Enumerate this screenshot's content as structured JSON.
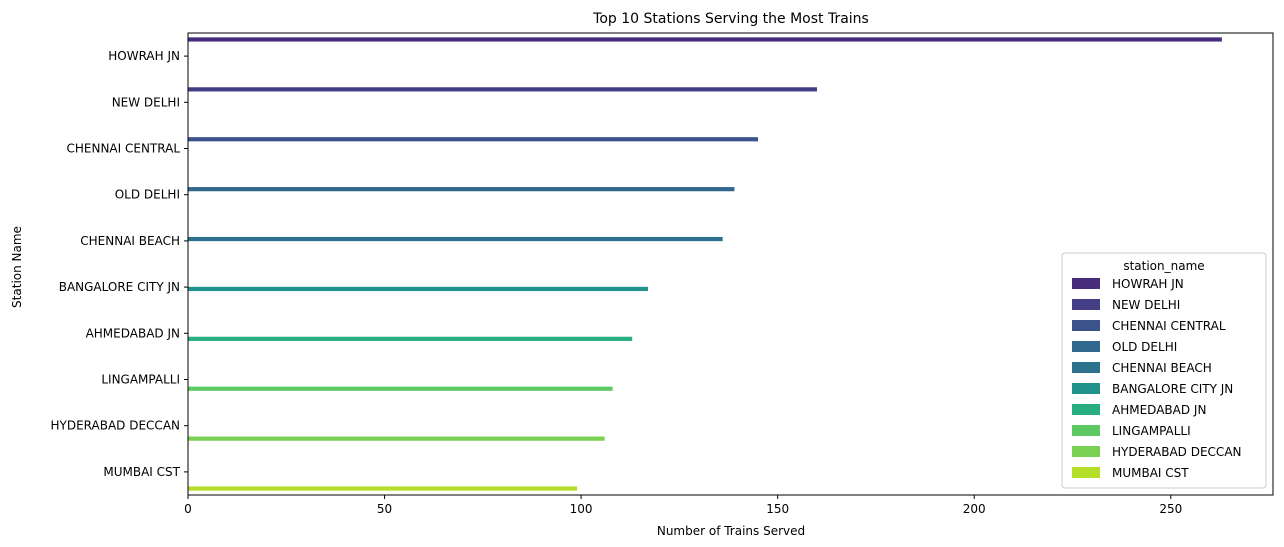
{
  "chart_data": {
    "type": "bar",
    "orientation": "horizontal",
    "title": "Top 10 Stations Serving the Most Trains",
    "xlabel": "Number of Trains Served",
    "ylabel": "Station Name",
    "categories": [
      "HOWRAH JN",
      "NEW DELHI",
      "CHENNAI CENTRAL",
      "OLD DELHI",
      "CHENNAI BEACH",
      "BANGALORE CITY JN",
      "AHMEDABAD JN",
      "LINGAMPALLI",
      "HYDERABAD DECCAN",
      "MUMBAI CST"
    ],
    "values": [
      263,
      160,
      145,
      139,
      136,
      117,
      113,
      108,
      106,
      99
    ],
    "colors": [
      "#472d7b",
      "#433e85",
      "#3b528b",
      "#31688e",
      "#2c728e",
      "#21918c",
      "#28ae80",
      "#5ec962",
      "#7ad151",
      "#b5de2b"
    ],
    "xlim": [
      0,
      276
    ],
    "xticks": [
      0,
      50,
      100,
      150,
      200,
      250
    ],
    "grid": false,
    "legend": {
      "title": "station_name",
      "placement": "lower-right",
      "entries": [
        "HOWRAH JN",
        "NEW DELHI",
        "CHENNAI CENTRAL",
        "OLD DELHI",
        "CHENNAI BEACH",
        "BANGALORE CITY JN",
        "AHMEDABAD JN",
        "LINGAMPALLI",
        "HYDERABAD DECCAN",
        "MUMBAI CST"
      ]
    }
  }
}
